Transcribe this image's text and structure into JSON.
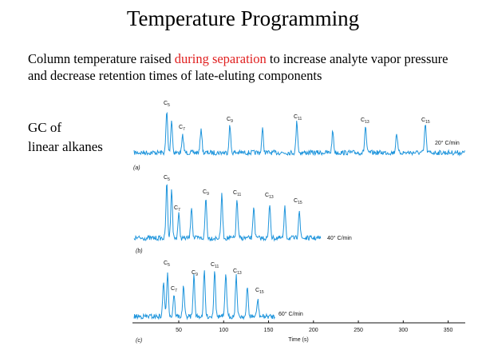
{
  "title": "Temperature Programming",
  "body": {
    "before": "Column temperature raised ",
    "highlight": "during separation",
    "after": " to increase analyte vapor pressure and decrease retention times of late-eluting components"
  },
  "side_label": {
    "line1": "GC of",
    "line2": "linear alkanes"
  },
  "panels": [
    {
      "tag": "(a)",
      "rate": "20° C/min",
      "peaks": [
        {
          "letter": "C",
          "sub": "5"
        },
        {
          "letter": "C",
          "sub": "7"
        },
        {
          "letter": "C",
          "sub": "9"
        },
        {
          "letter": "C",
          "sub": "11"
        },
        {
          "letter": "C",
          "sub": "13"
        },
        {
          "letter": "C",
          "sub": "15"
        }
      ]
    },
    {
      "tag": "(b)",
      "rate": "40° C/min",
      "peaks": [
        {
          "letter": "C",
          "sub": "5"
        },
        {
          "letter": "C",
          "sub": "7"
        },
        {
          "letter": "C",
          "sub": "9"
        },
        {
          "letter": "C",
          "sub": "11"
        },
        {
          "letter": "C",
          "sub": "13"
        },
        {
          "letter": "C",
          "sub": "15"
        }
      ]
    },
    {
      "tag": "(c)",
      "rate": "60° C/min",
      "peaks": [
        {
          "letter": "C",
          "sub": "5"
        },
        {
          "letter": "C",
          "sub": "7"
        },
        {
          "letter": "C",
          "sub": "9"
        },
        {
          "letter": "C",
          "sub": "11"
        },
        {
          "letter": "C",
          "sub": "13"
        },
        {
          "letter": "C",
          "sub": "15"
        }
      ]
    }
  ],
  "axis": {
    "label": "Time (s)",
    "ticks": [
      50,
      100,
      150,
      200,
      250,
      300,
      350
    ]
  }
}
